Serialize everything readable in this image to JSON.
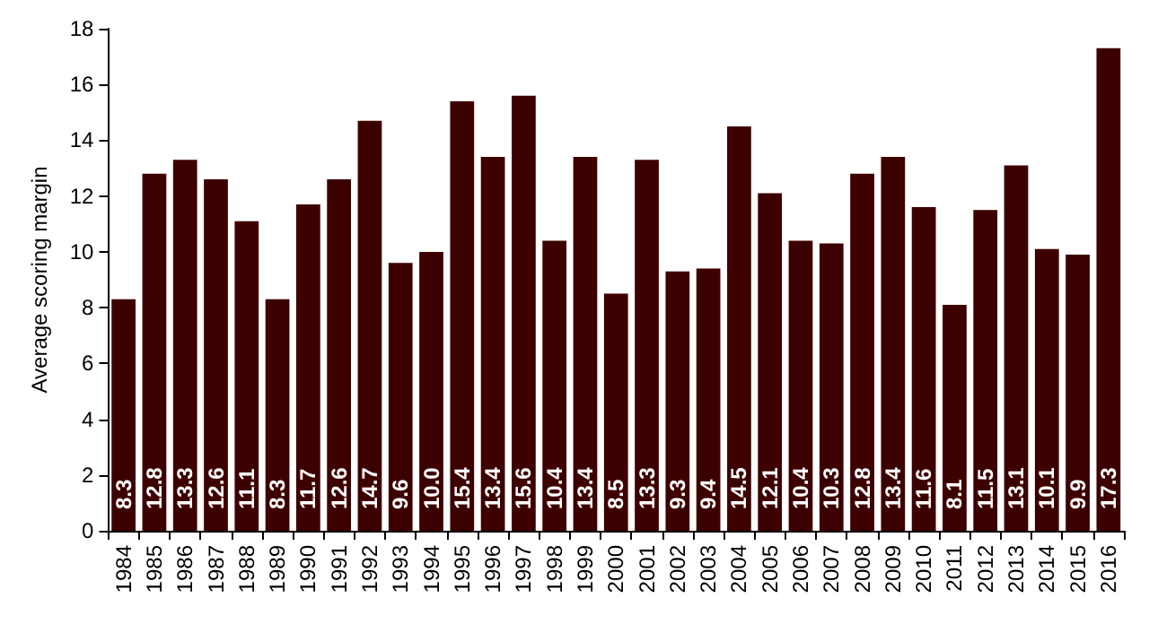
{
  "chart_data": {
    "type": "bar",
    "ylabel": "Average scoring margin",
    "categories": [
      "1984",
      "1985",
      "1986",
      "1987",
      "1988",
      "1989",
      "1990",
      "1991",
      "1992",
      "1993",
      "1994",
      "1995",
      "1996",
      "1997",
      "1998",
      "1999",
      "2000",
      "2001",
      "2002",
      "2003",
      "2004",
      "2005",
      "2006",
      "2007",
      "2008",
      "2009",
      "2010",
      "2011",
      "2012",
      "2013",
      "2014",
      "2015",
      "2016"
    ],
    "values": [
      8.3,
      12.8,
      13.3,
      12.6,
      11.1,
      8.3,
      11.7,
      12.6,
      14.7,
      9.6,
      10.0,
      15.4,
      13.4,
      15.6,
      10.4,
      13.4,
      8.5,
      13.3,
      9.3,
      9.4,
      14.5,
      12.1,
      10.4,
      10.3,
      12.8,
      13.4,
      11.6,
      8.1,
      11.5,
      13.1,
      10.1,
      9.9,
      17.3
    ],
    "value_labels": [
      "8.3",
      "12.8",
      "13.3",
      "12.6",
      "11.1",
      "8.3",
      "11.7",
      "12.6",
      "14.7",
      "9.6",
      "10.0",
      "15.4",
      "13.4",
      "15.6",
      "10.4",
      "13.4",
      "8.5",
      "13.3",
      "9.3",
      "9.4",
      "14.5",
      "12.1",
      "10.4",
      "10.3",
      "12.8",
      "13.4",
      "11.6",
      "8.1",
      "11.5",
      "13.1",
      "10.1",
      "9.9",
      "17.3"
    ],
    "color": "#3d0000",
    "ylim": [
      0,
      18
    ],
    "yticks": [
      0,
      2,
      4,
      6,
      8,
      10,
      12,
      14,
      16,
      18
    ],
    "grid": false
  }
}
